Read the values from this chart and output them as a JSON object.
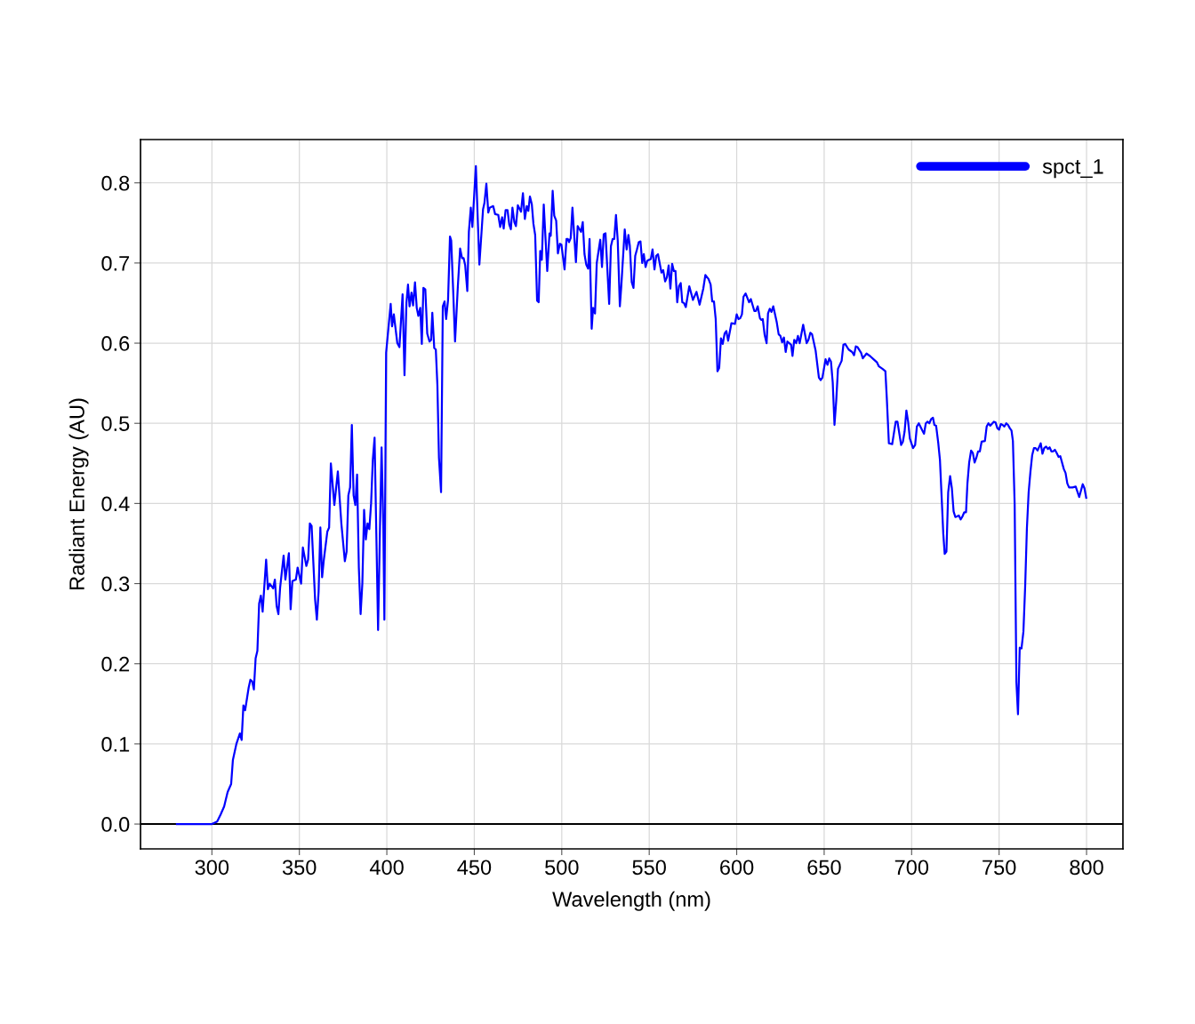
{
  "chart_data": {
    "type": "line",
    "xlabel": "Wavelength (nm)",
    "ylabel": "Radiant Energy (AU)",
    "xlim": [
      259.2,
      820.8
    ],
    "ylim": [
      -0.031,
      0.854
    ],
    "xticks": [
      300,
      350,
      400,
      450,
      500,
      550,
      600,
      650,
      700,
      750,
      800
    ],
    "yticks": [
      {
        "value": 0,
        "label": "0.0"
      },
      0.1,
      0.2,
      0.3,
      0.4,
      0.5,
      0.6,
      0.7,
      0.8
    ],
    "grid": true,
    "legend": "top right",
    "line_style": "solid",
    "marker": "none",
    "ref_lines": [
      {
        "axis": "y",
        "value": 0,
        "color": "#000000"
      }
    ],
    "series": [
      {
        "name": "spct_1",
        "color": "#0000ff",
        "x": [
          280,
          300,
          303,
          305,
          307,
          309,
          311,
          312,
          314,
          316,
          317,
          318,
          319,
          321,
          322,
          323,
          324,
          325,
          326,
          327,
          328,
          329,
          331,
          332,
          333,
          335,
          336,
          337,
          338,
          339,
          341,
          342,
          344,
          345,
          346,
          348,
          349,
          351,
          352,
          354,
          355,
          356,
          357,
          359,
          360,
          361,
          362,
          363,
          364,
          366,
          367,
          368,
          370,
          372,
          374,
          376,
          377,
          378,
          379,
          380,
          381,
          382,
          383,
          384,
          385,
          386,
          387,
          388,
          389,
          390,
          391,
          392,
          393,
          394,
          395,
          396,
          397,
          398,
          398.6,
          399.6,
          402.2,
          403,
          404,
          406,
          407.2,
          409,
          410.1,
          411.2,
          412.1,
          413,
          414.1,
          415,
          416.1,
          417.1,
          418,
          419.1,
          420,
          420.9,
          422,
          423.1,
          424.4,
          425.3,
          426,
          427.1,
          428,
          428.9,
          429.8,
          431,
          432,
          433,
          433.9,
          435,
          436.1,
          436.8,
          437.9,
          439,
          440.6,
          441.9,
          443,
          443.9,
          444.8,
          446,
          446.9,
          448,
          448.9,
          450.9,
          452.9,
          455,
          455.8,
          456.9,
          458,
          458.8,
          460.8,
          461.9,
          463.7,
          464.8,
          465.9,
          466.8,
          467.9,
          469,
          470,
          470.9,
          471.8,
          472.9,
          473.8,
          474.9,
          476.7,
          477.8,
          478.9,
          480,
          480.9,
          481.8,
          482.9,
          483.8,
          484.8,
          485.9,
          486.8,
          487.7,
          488.6,
          489.7,
          491.7,
          493,
          493.7,
          494.8,
          495.7,
          496.8,
          497.8,
          498.9,
          499.8,
          501.6,
          502.7,
          503.5,
          504.1,
          505.1,
          506.1,
          508.1,
          509.1,
          510.2,
          511,
          512,
          513,
          514,
          515.1,
          515.9,
          517.1,
          517.9,
          519,
          520,
          522,
          523,
          524,
          525,
          527.1,
          528.1,
          529.1,
          530,
          531,
          532,
          533.2,
          534,
          536,
          537.1,
          538.1,
          538.9,
          540,
          541,
          542,
          543,
          544,
          545,
          546,
          546.9,
          547.9,
          548.9,
          550.9,
          551.9,
          553,
          554,
          555,
          557,
          558,
          559.1,
          560.1,
          561.1,
          562.1,
          563.1,
          564.1,
          565,
          566,
          567,
          568,
          568.9,
          569.9,
          570.9,
          572.9,
          575,
          577,
          578.8,
          580.9,
          582.1,
          583.9,
          585.1,
          586,
          587,
          588,
          589,
          590,
          591,
          592,
          593.1,
          594.1,
          595.1,
          597,
          599,
          600,
          601,
          602,
          603,
          603.9,
          605.1,
          607.1,
          608.1,
          610.1,
          611,
          612,
          613.3,
          614,
          614.9,
          616,
          617.1,
          617.9,
          618.9,
          619.9,
          620.9,
          622.9,
          624,
          625,
          626,
          627,
          628,
          629,
          631.1,
          631.9,
          632.9,
          634,
          635,
          636,
          638,
          640,
          641,
          642.1,
          643.1,
          645.1,
          647,
          648,
          649,
          650.8,
          651.9,
          652.9,
          653.9,
          654.9,
          655.9,
          656.9,
          657.9,
          660,
          661,
          662,
          664,
          666,
          667.1,
          668.1,
          669.1,
          671.1,
          672.1,
          674.2,
          676.2,
          678.2,
          680.2,
          681.3,
          683.3,
          685,
          685.8,
          687,
          688.9,
          690.9,
          691.9,
          694,
          695,
          696,
          697,
          698,
          699,
          700.8,
          702,
          703,
          704.1,
          706.1,
          707.1,
          708.1,
          709.1,
          710.1,
          711.1,
          712.2,
          713,
          714,
          715.2,
          716.2,
          717.2,
          718.1,
          718.9,
          719.9,
          720.9,
          722,
          723,
          724,
          725,
          727,
          728,
          729.1,
          730.1,
          731.1,
          731.9,
          732.9,
          734,
          735,
          736,
          737,
          738,
          739,
          740,
          741.9,
          742.9,
          743.9,
          744.9,
          747,
          748,
          749,
          750,
          751,
          752,
          753,
          754.1,
          755.1,
          756.1,
          757.1,
          757.9,
          758.9,
          759.9,
          760.8,
          761.8,
          762.8,
          763.9,
          764.9,
          765.9,
          766.9,
          767.9,
          768.9,
          769.9,
          770.9,
          772,
          773.8,
          774.8,
          775.8,
          776.9,
          777.9,
          778.9,
          779.9,
          780.9,
          781.9,
          782.9,
          784,
          785,
          787,
          788,
          789,
          790,
          792,
          793.8,
          795.8,
          797.8,
          798.8,
          799.8
        ],
        "values": [
          0,
          0,
          0.003,
          0.012,
          0.022,
          0.04,
          0.05,
          0.08,
          0.1,
          0.113,
          0.105,
          0.148,
          0.142,
          0.17,
          0.18,
          0.178,
          0.168,
          0.207,
          0.216,
          0.275,
          0.285,
          0.265,
          0.33,
          0.293,
          0.3,
          0.294,
          0.305,
          0.272,
          0.262,
          0.295,
          0.335,
          0.305,
          0.338,
          0.268,
          0.303,
          0.305,
          0.32,
          0.3,
          0.345,
          0.322,
          0.33,
          0.375,
          0.372,
          0.28,
          0.255,
          0.29,
          0.37,
          0.308,
          0.33,
          0.365,
          0.37,
          0.45,
          0.398,
          0.44,
          0.375,
          0.328,
          0.34,
          0.41,
          0.42,
          0.498,
          0.41,
          0.398,
          0.436,
          0.32,
          0.262,
          0.3,
          0.392,
          0.355,
          0.375,
          0.368,
          0.4,
          0.455,
          0.482,
          0.362,
          0.242,
          0.36,
          0.47,
          0.37,
          0.255,
          0.588,
          0.649,
          0.621,
          0.636,
          0.6,
          0.595,
          0.661,
          0.56,
          0.65,
          0.673,
          0.646,
          0.663,
          0.647,
          0.676,
          0.644,
          0.634,
          0.644,
          0.599,
          0.669,
          0.667,
          0.612,
          0.602,
          0.604,
          0.638,
          0.594,
          0.592,
          0.548,
          0.457,
          0.414,
          0.646,
          0.652,
          0.63,
          0.654,
          0.733,
          0.728,
          0.667,
          0.602,
          0.671,
          0.718,
          0.706,
          0.706,
          0.697,
          0.665,
          0.739,
          0.769,
          0.745,
          0.821,
          0.698,
          0.767,
          0.775,
          0.799,
          0.763,
          0.769,
          0.771,
          0.761,
          0.76,
          0.745,
          0.757,
          0.743,
          0.766,
          0.766,
          0.748,
          0.742,
          0.769,
          0.751,
          0.746,
          0.772,
          0.764,
          0.787,
          0.755,
          0.771,
          0.765,
          0.783,
          0.773,
          0.749,
          0.735,
          0.653,
          0.651,
          0.715,
          0.704,
          0.773,
          0.69,
          0.737,
          0.734,
          0.79,
          0.759,
          0.753,
          0.712,
          0.724,
          0.723,
          0.692,
          0.73,
          0.73,
          0.726,
          0.731,
          0.769,
          0.701,
          0.746,
          0.742,
          0.739,
          0.751,
          0.711,
          0.698,
          0.693,
          0.73,
          0.618,
          0.644,
          0.637,
          0.7,
          0.729,
          0.695,
          0.736,
          0.737,
          0.649,
          0.721,
          0.73,
          0.73,
          0.76,
          0.728,
          0.646,
          0.67,
          0.742,
          0.717,
          0.735,
          0.722,
          0.676,
          0.669,
          0.709,
          0.717,
          0.726,
          0.727,
          0.7,
          0.711,
          0.695,
          0.703,
          0.705,
          0.717,
          0.692,
          0.709,
          0.711,
          0.688,
          0.691,
          0.677,
          0.682,
          0.697,
          0.668,
          0.699,
          0.69,
          0.69,
          0.651,
          0.671,
          0.675,
          0.651,
          0.65,
          0.645,
          0.671,
          0.654,
          0.664,
          0.648,
          0.668,
          0.685,
          0.68,
          0.673,
          0.652,
          0.652,
          0.63,
          0.565,
          0.569,
          0.606,
          0.599,
          0.612,
          0.615,
          0.603,
          0.625,
          0.624,
          0.636,
          0.63,
          0.631,
          0.636,
          0.658,
          0.662,
          0.651,
          0.655,
          0.64,
          0.64,
          0.646,
          0.631,
          0.629,
          0.63,
          0.61,
          0.6,
          0.637,
          0.643,
          0.639,
          0.646,
          0.626,
          0.611,
          0.609,
          0.601,
          0.607,
          0.589,
          0.602,
          0.598,
          0.584,
          0.604,
          0.6,
          0.609,
          0.6,
          0.623,
          0.6,
          0.604,
          0.613,
          0.611,
          0.591,
          0.557,
          0.554,
          0.557,
          0.58,
          0.573,
          0.581,
          0.577,
          0.551,
          0.498,
          0.528,
          0.568,
          0.578,
          0.598,
          0.599,
          0.592,
          0.589,
          0.585,
          0.596,
          0.595,
          0.588,
          0.581,
          0.587,
          0.584,
          0.58,
          0.576,
          0.571,
          0.568,
          0.565,
          0.532,
          0.475,
          0.474,
          0.502,
          0.502,
          0.473,
          0.477,
          0.49,
          0.516,
          0.502,
          0.481,
          0.469,
          0.473,
          0.496,
          0.5,
          0.491,
          0.487,
          0.5,
          0.502,
          0.5,
          0.505,
          0.507,
          0.498,
          0.497,
          0.476,
          0.454,
          0.406,
          0.362,
          0.337,
          0.34,
          0.414,
          0.434,
          0.419,
          0.39,
          0.383,
          0.385,
          0.38,
          0.384,
          0.389,
          0.389,
          0.425,
          0.451,
          0.466,
          0.463,
          0.451,
          0.457,
          0.465,
          0.465,
          0.477,
          0.478,
          0.496,
          0.5,
          0.497,
          0.502,
          0.501,
          0.494,
          0.492,
          0.499,
          0.498,
          0.496,
          0.5,
          0.498,
          0.494,
          0.491,
          0.478,
          0.399,
          0.177,
          0.137,
          0.22,
          0.219,
          0.24,
          0.296,
          0.369,
          0.414,
          0.439,
          0.46,
          0.469,
          0.469,
          0.466,
          0.475,
          0.462,
          0.469,
          0.471,
          0.468,
          0.47,
          0.465,
          0.465,
          0.467,
          0.463,
          0.458,
          0.459,
          0.443,
          0.438,
          0.425,
          0.42,
          0.42,
          0.421,
          0.408,
          0.424,
          0.419,
          0.407
        ]
      }
    ]
  }
}
